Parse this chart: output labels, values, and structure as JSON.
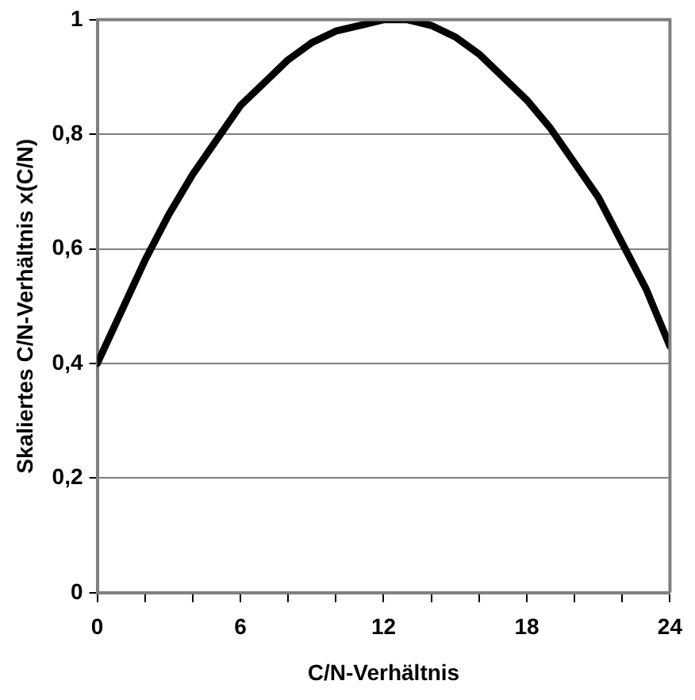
{
  "chart_data": {
    "type": "line",
    "xlabel": "C/N-Verhältnis",
    "ylabel": "Skaliertes C/N-Verhältnis x(C/N)",
    "x": [
      0,
      1,
      2,
      3,
      4,
      5,
      6,
      7,
      8,
      9,
      10,
      11,
      12,
      13,
      14,
      15,
      16,
      17,
      18,
      19,
      20,
      21,
      22,
      23,
      24
    ],
    "series": [
      {
        "color": "#000000",
        "values": [
          0.4,
          0.49,
          0.58,
          0.66,
          0.73,
          0.79,
          0.85,
          0.89,
          0.93,
          0.96,
          0.98,
          0.99,
          1.0,
          1.0,
          0.99,
          0.97,
          0.94,
          0.9,
          0.86,
          0.81,
          0.75,
          0.69,
          0.61,
          0.53,
          0.43
        ]
      }
    ],
    "xlim": [
      0,
      24
    ],
    "ylim": [
      0,
      1
    ],
    "xticks": [
      0,
      {
        "value": 2,
        "label": null
      },
      {
        "value": 4,
        "label": null
      },
      6,
      {
        "value": 8,
        "label": null
      },
      {
        "value": 10,
        "label": null
      },
      12,
      {
        "value": 14,
        "label": null
      },
      {
        "value": 16,
        "label": null
      },
      18,
      {
        "value": 20,
        "label": null
      },
      {
        "value": 22,
        "label": null
      },
      24
    ],
    "yticks": [
      0,
      {
        "value": 0.2,
        "label": "0,2"
      },
      {
        "value": 0.4,
        "label": "0,4"
      },
      {
        "value": 0.6,
        "label": "0,6"
      },
      {
        "value": 0.8,
        "label": "0,8"
      },
      1
    ],
    "grid": "y",
    "legend": false,
    "marker": "none",
    "line_style": "solid"
  }
}
